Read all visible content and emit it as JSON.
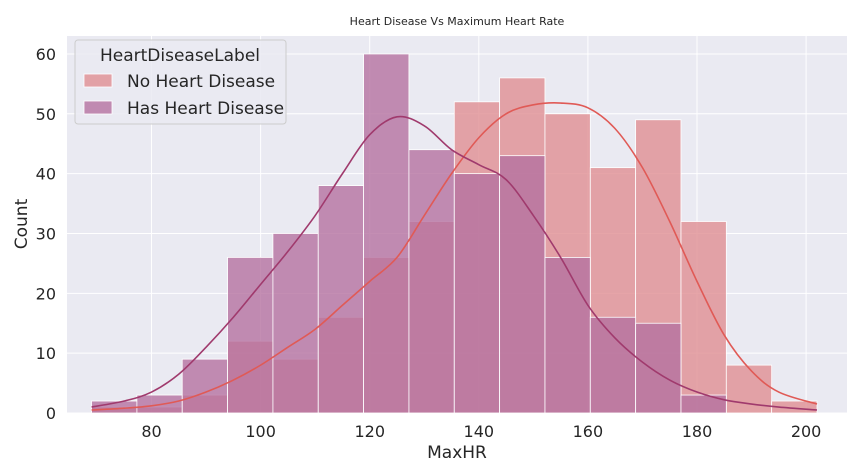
{
  "chart_data": {
    "type": "histogram",
    "title": "Heart Disease Vs Maximum Heart Rate",
    "xlabel": "MaxHR",
    "ylabel": "Count",
    "xlim": [
      64.5,
      207.5
    ],
    "ylim": [
      0,
      63
    ],
    "xticks": [
      80,
      100,
      120,
      140,
      160,
      180,
      200
    ],
    "yticks": [
      0,
      10,
      20,
      30,
      40,
      50,
      60
    ],
    "grid": true,
    "legend": {
      "title": "HeartDiseaseLabel",
      "placement": "top-left",
      "entries": [
        "No Heart Disease",
        "Has Heart Disease"
      ]
    },
    "bin_edges": [
      69.0,
      77.3125,
      85.625,
      93.9375,
      102.25,
      110.5625,
      118.875,
      127.1875,
      135.5,
      143.8125,
      152.125,
      160.4375,
      168.75,
      177.0625,
      185.375,
      193.6875,
      202.0
    ],
    "series": [
      {
        "name": "No Heart Disease",
        "bar_color": "#e08f92",
        "line_color": "#e05a56",
        "counts": [
          1,
          1,
          3,
          12,
          9,
          16,
          26,
          32,
          52,
          56,
          50,
          41,
          49,
          32,
          8,
          2
        ],
        "kde": [
          [
            69,
            0.5
          ],
          [
            75,
            0.8
          ],
          [
            80,
            1.2
          ],
          [
            85,
            2
          ],
          [
            90,
            3.5
          ],
          [
            95,
            5.5
          ],
          [
            100,
            8
          ],
          [
            105,
            11
          ],
          [
            110,
            14
          ],
          [
            115,
            18
          ],
          [
            120,
            22
          ],
          [
            125,
            26
          ],
          [
            130,
            33
          ],
          [
            135,
            40
          ],
          [
            140,
            46
          ],
          [
            145,
            50
          ],
          [
            150,
            51.5
          ],
          [
            155,
            51.8
          ],
          [
            160,
            51
          ],
          [
            165,
            47.5
          ],
          [
            170,
            41
          ],
          [
            175,
            32
          ],
          [
            180,
            22
          ],
          [
            185,
            13
          ],
          [
            190,
            7
          ],
          [
            195,
            3.5
          ],
          [
            202,
            1.5
          ]
        ]
      },
      {
        "name": "Has Heart Disease",
        "bar_color": "#b572a0",
        "line_color": "#a03a6d",
        "counts": [
          2,
          3,
          9,
          26,
          30,
          38,
          60,
          44,
          40,
          43,
          26,
          16,
          15,
          3,
          0,
          0
        ],
        "kde": [
          [
            69,
            1
          ],
          [
            75,
            2
          ],
          [
            80,
            3.5
          ],
          [
            85,
            6.5
          ],
          [
            90,
            11
          ],
          [
            95,
            16
          ],
          [
            100,
            21.5
          ],
          [
            105,
            27
          ],
          [
            110,
            33
          ],
          [
            115,
            40
          ],
          [
            120,
            46.5
          ],
          [
            125,
            49.5
          ],
          [
            130,
            48
          ],
          [
            135,
            44
          ],
          [
            140,
            41.5
          ],
          [
            145,
            39
          ],
          [
            150,
            33
          ],
          [
            155,
            26
          ],
          [
            160,
            18
          ],
          [
            165,
            12.5
          ],
          [
            170,
            8.5
          ],
          [
            175,
            5.5
          ],
          [
            180,
            3.5
          ],
          [
            185,
            2.2
          ],
          [
            190,
            1.5
          ],
          [
            195,
            1
          ],
          [
            202,
            0.5
          ]
        ]
      }
    ]
  }
}
